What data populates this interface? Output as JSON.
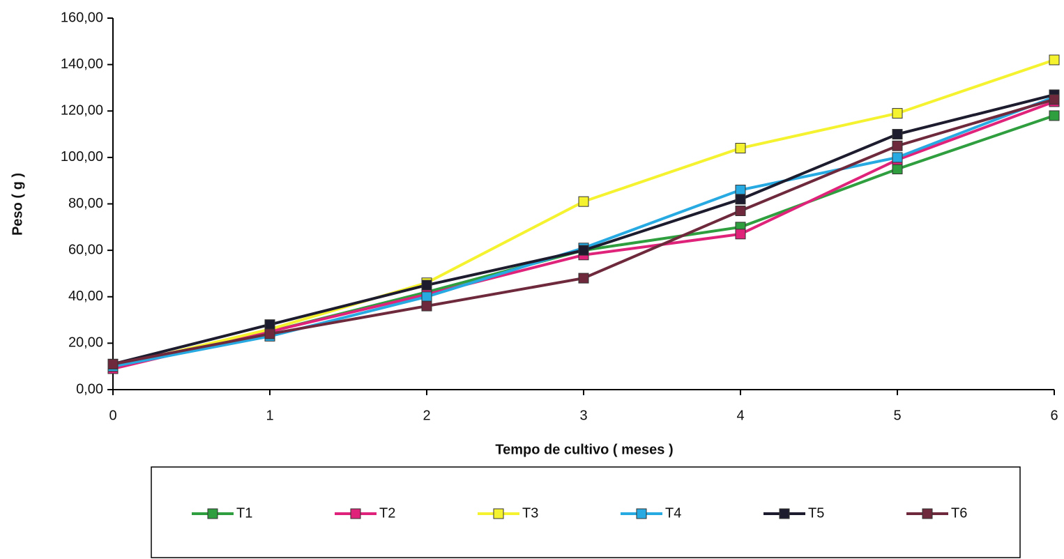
{
  "chart_data": {
    "type": "line",
    "x_label": "Tempo de cultivo ( meses )",
    "y_label": "Peso ( g )",
    "x": [
      0,
      1,
      2,
      3,
      4,
      5,
      6
    ],
    "xlim": [
      0,
      6
    ],
    "xticks": [
      0,
      1,
      2,
      3,
      4,
      5,
      6
    ],
    "ylim": [
      0,
      160
    ],
    "yticks": [
      {
        "value": 0,
        "label": "0,00"
      },
      {
        "value": 20,
        "label": "20,00"
      },
      {
        "value": 40,
        "label": "40,00"
      },
      {
        "value": 60,
        "label": "60,00"
      },
      {
        "value": 80,
        "label": "80,00"
      },
      {
        "value": 100,
        "label": "100,00"
      },
      {
        "value": 120,
        "label": "120,00"
      },
      {
        "value": 140,
        "label": "140,00"
      },
      {
        "value": 160,
        "label": "160,00"
      }
    ],
    "series": [
      {
        "name": "T1",
        "color": "#2e9e3e",
        "values": [
          10,
          25,
          42,
          60,
          70,
          95,
          118
        ]
      },
      {
        "name": "T2",
        "color": "#e0237a",
        "values": [
          9,
          25,
          41,
          58,
          67,
          99,
          124
        ]
      },
      {
        "name": "T3",
        "color": "#f5f230",
        "values": [
          10,
          26,
          46,
          81,
          104,
          119,
          142
        ]
      },
      {
        "name": "T4",
        "color": "#27a9e1",
        "values": [
          10,
          23,
          40,
          61,
          86,
          100,
          126
        ]
      },
      {
        "name": "T5",
        "color": "#1c1c2e",
        "values": [
          11,
          28,
          45,
          60,
          82,
          110,
          127
        ]
      },
      {
        "name": "T6",
        "color": "#6e2a3c",
        "values": [
          11,
          24,
          36,
          48,
          77,
          105,
          125
        ]
      }
    ]
  }
}
